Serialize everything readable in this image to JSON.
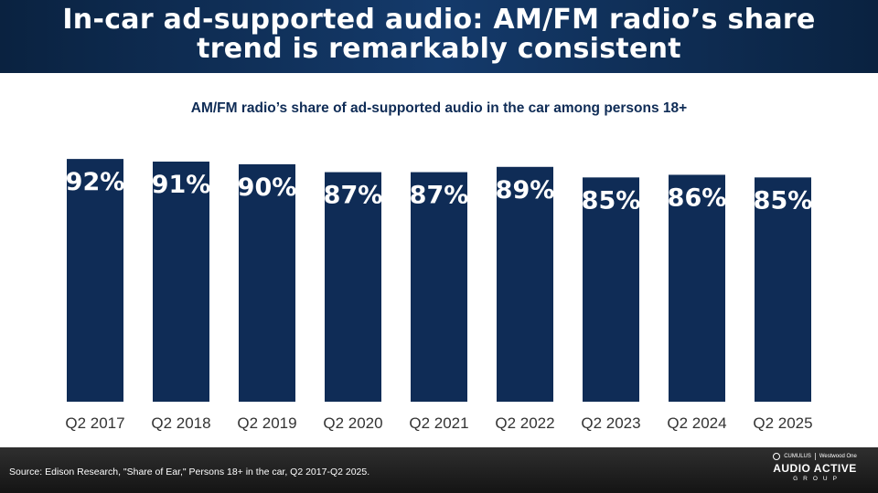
{
  "header": {
    "title_line1": "In-car ad-supported audio: AM/FM radio’s share",
    "title_line2": "trend is remarkably consistent"
  },
  "chart_data": {
    "type": "bar",
    "title": "AM/FM radio’s share of ad-supported audio in the car among persons 18+",
    "categories": [
      "Q2 2017",
      "Q2 2018",
      "Q2 2019",
      "Q2 2020",
      "Q2 2021",
      "Q2 2022",
      "Q2 2023",
      "Q2 2024",
      "Q2 2025"
    ],
    "values": [
      92,
      91,
      90,
      87,
      87,
      89,
      85,
      86,
      85
    ],
    "data_labels": [
      "92%",
      "91%",
      "90%",
      "87%",
      "87%",
      "89%",
      "85%",
      "86%",
      "85%"
    ],
    "xlabel": "",
    "ylabel": "",
    "ylim": [
      0,
      100
    ],
    "grid": false,
    "legend": "none",
    "bar_color": "#0f2c56"
  },
  "footer": {
    "source": "Source: Edison Research, \"Share of Ear,\" Persons 18+ in the car, Q2 2017-Q2 2025.",
    "logo_brand1": "CUMULUS",
    "logo_brand2": "Westwood One",
    "logo_main": "AUDIO ACTIVE",
    "logo_sub": "GROUP"
  }
}
